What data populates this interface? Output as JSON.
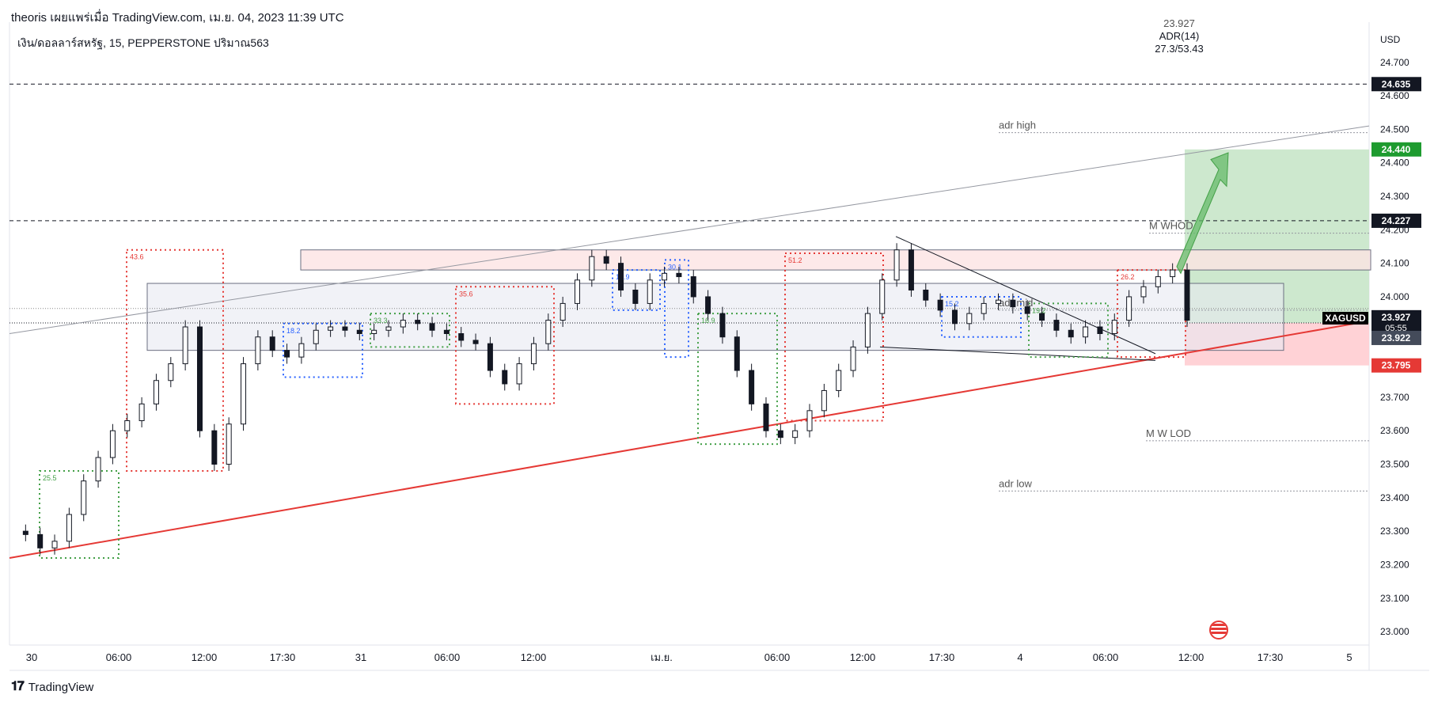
{
  "header": {
    "publisher": "theoris เผยแพร่เมื่อ TradingView.com, เม.ย. 04, 2023 11:39 UTC",
    "symbol_line": "เงิน/ดอลลาร์สหรัฐ, 15, PEPPERSTONE  ปริมาณ563"
  },
  "indicator": {
    "top": "23.927",
    "name": "ADR(14)",
    "value": "27.3/53.43"
  },
  "ticker": "XAGUSD",
  "footer": {
    "brand": "TradingView"
  },
  "colors": {
    "up": "#131722",
    "trend_support": "#e53935",
    "tp_zone": "#c8e6c9",
    "sl_zone": "#ffcdd2",
    "tp_label": "#1e9b2f",
    "sl_label": "#e53935",
    "dark_label": "#131722",
    "box_blue": "#2962ff",
    "box_red": "#e53935",
    "box_green": "#43a047"
  },
  "chart_data": {
    "type": "line",
    "x_ticks": [
      "30",
      "06:00",
      "12:00",
      "17:30",
      "31",
      "06:00",
      "12:00",
      "เม.ย.",
      "06:00",
      "12:00",
      "17:30",
      "4",
      "06:00",
      "12:00",
      "17:30",
      "5"
    ],
    "currency": "USD",
    "y_ticks": [
      "24.700",
      "24.600",
      "24.500",
      "24.400",
      "24.300",
      "24.200",
      "24.100",
      "24.000",
      "23.900",
      "23.800",
      "23.700",
      "23.600",
      "23.500",
      "23.400",
      "23.300",
      "23.200",
      "23.100",
      "23.000"
    ],
    "ylim": [
      22.96,
      24.82
    ],
    "price_labels": [
      {
        "value": 24.635,
        "text": "24.635",
        "color": "dark"
      },
      {
        "value": 24.44,
        "text": "24.440",
        "color": "tp"
      },
      {
        "value": 24.227,
        "text": "24.227",
        "color": "dark"
      },
      {
        "value": 23.927,
        "text": "23.927",
        "extra": "05:55",
        "color": "dark"
      },
      {
        "value": 23.922,
        "text": "23.922",
        "color": "grey"
      },
      {
        "value": 23.795,
        "text": "23.795",
        "color": "sl"
      }
    ],
    "annotations": [
      {
        "text": "adr high",
        "price": 24.49
      },
      {
        "text": "M WHOD",
        "price": 24.19
      },
      {
        "text": "M W LOD",
        "price": 23.57
      },
      {
        "text": "adr low",
        "price": 23.42
      },
      {
        "text": "adr mid",
        "price": 23.96
      }
    ],
    "box_labels": [
      "43.6",
      "25.5",
      "18.2",
      "33.3",
      "35.6",
      "14.9",
      "30.1",
      "51.2",
      "15.2",
      "26.2",
      "16.9",
      "19.2"
    ],
    "position": {
      "entry": 23.922,
      "take_profit": 24.44,
      "stop_loss": 23.795
    },
    "price_series": [
      23.3,
      23.29,
      23.25,
      23.27,
      23.35,
      23.45,
      23.52,
      23.6,
      23.63,
      23.68,
      23.75,
      23.8,
      23.91,
      23.6,
      23.5,
      23.62,
      23.8,
      23.88,
      23.84,
      23.82,
      23.86,
      23.9,
      23.91,
      23.9,
      23.89,
      23.9,
      23.91,
      23.93,
      23.92,
      23.9,
      23.89,
      23.87,
      23.86,
      23.78,
      23.74,
      23.8,
      23.86,
      23.93,
      23.98,
      24.05,
      24.12,
      24.1,
      24.02,
      23.98,
      24.05,
      24.07,
      24.06,
      24.0,
      23.95,
      23.88,
      23.78,
      23.68,
      23.6,
      23.58,
      23.6,
      23.66,
      23.72,
      23.78,
      23.85,
      23.95,
      24.05,
      24.14,
      24.02,
      23.99,
      23.96,
      23.92,
      23.95,
      23.98,
      23.99,
      23.97,
      23.95,
      23.93,
      23.9,
      23.88,
      23.91,
      23.89,
      23.93,
      24.0,
      24.03,
      24.06,
      24.08,
      23.93
    ]
  }
}
